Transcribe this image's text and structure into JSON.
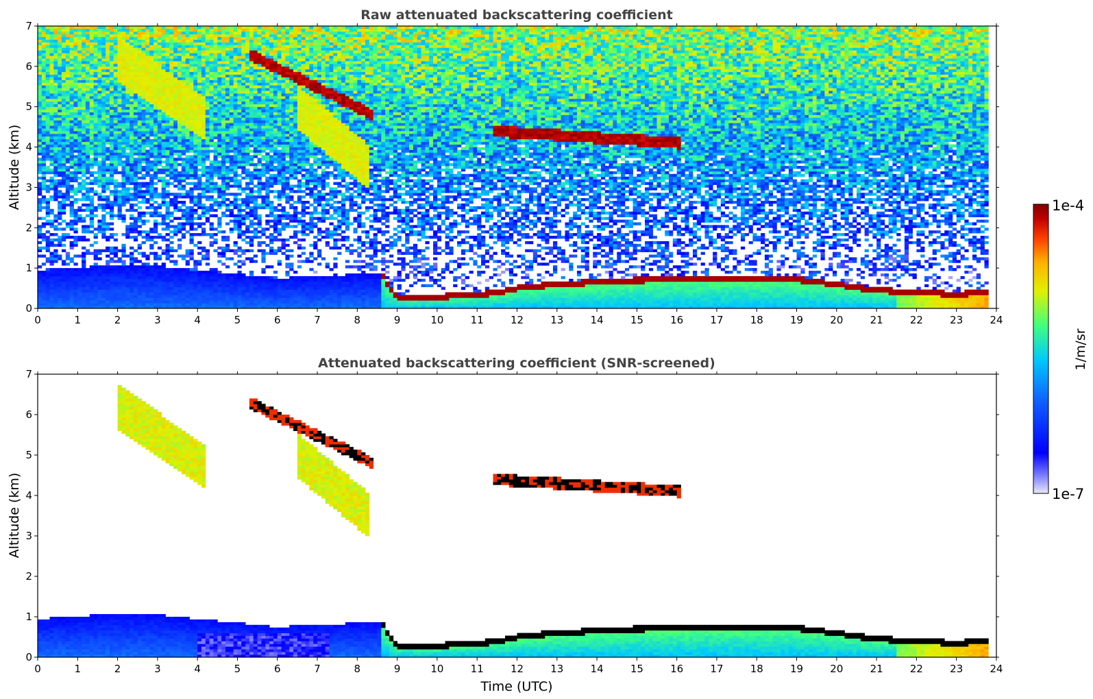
{
  "chart_data": [
    {
      "type": "heatmap",
      "title": "Raw attenuated backscattering coefficient",
      "xlabel": "",
      "ylabel": "Altitude (km)",
      "xlim": [
        0,
        24
      ],
      "ylim": [
        0,
        7
      ],
      "x_ticks": [
        "0",
        "1",
        "2",
        "3",
        "4",
        "5",
        "6",
        "7",
        "8",
        "9",
        "10",
        "11",
        "12",
        "13",
        "14",
        "15",
        "16",
        "17",
        "18",
        "19",
        "20",
        "21",
        "22",
        "23",
        "24"
      ],
      "y_ticks": [
        "0",
        "1",
        "2",
        "3",
        "4",
        "5",
        "6",
        "7"
      ],
      "screened": false,
      "features": {
        "cloud_base_km": [
          [
            8.6,
            0.85
          ],
          [
            9.0,
            0.25
          ],
          [
            10,
            0.28
          ],
          [
            11,
            0.35
          ],
          [
            11.5,
            0.38
          ],
          [
            12,
            0.5
          ],
          [
            13,
            0.6
          ],
          [
            14,
            0.65
          ],
          [
            15,
            0.7
          ],
          [
            16,
            0.72
          ],
          [
            17,
            0.75
          ],
          [
            18,
            0.75
          ],
          [
            19,
            0.72
          ],
          [
            20,
            0.6
          ],
          [
            21,
            0.45
          ],
          [
            22,
            0.4
          ],
          [
            23,
            0.35
          ],
          [
            23.8,
            0.4
          ]
        ],
        "aerosol_layer_top_km": [
          [
            0,
            0.95
          ],
          [
            1,
            1.0
          ],
          [
            2,
            1.1
          ],
          [
            3,
            1.05
          ],
          [
            4,
            0.95
          ],
          [
            5,
            0.85
          ],
          [
            6,
            0.75
          ],
          [
            7,
            0.8
          ],
          [
            8,
            0.85
          ],
          [
            8.6,
            0.85
          ]
        ],
        "elevated_layers": [
          {
            "x": [
              5.3,
              8.4
            ],
            "y": [
              6.3,
              4.8
            ],
            "level": "high"
          },
          {
            "x": [
              11.4,
              16.1
            ],
            "y": [
              4.4,
              4.1
            ],
            "level": "high"
          },
          {
            "x": [
              2.0,
              4.2
            ],
            "y": [
              6.2,
              4.7
            ],
            "level": "mid"
          },
          {
            "x": [
              6.5,
              8.3
            ],
            "y": [
              5.0,
              3.5
            ],
            "level": "mid"
          }
        ]
      }
    },
    {
      "type": "heatmap",
      "title": "Attenuated backscattering coefficient (SNR-screened)",
      "xlabel": "Time (UTC)",
      "ylabel": "Altitude (km)",
      "xlim": [
        0,
        24
      ],
      "ylim": [
        0,
        7
      ],
      "x_ticks": [
        "0",
        "1",
        "2",
        "3",
        "4",
        "5",
        "6",
        "7",
        "8",
        "9",
        "10",
        "11",
        "12",
        "13",
        "14",
        "15",
        "16",
        "17",
        "18",
        "19",
        "20",
        "21",
        "22",
        "23",
        "24"
      ],
      "y_ticks": [
        "0",
        "1",
        "2",
        "3",
        "4",
        "5",
        "6",
        "7"
      ],
      "screened": true
    }
  ],
  "colorbar": {
    "max_label": "1e-4",
    "min_label": "1e-7",
    "unit_label": "1/m/sr",
    "scale": "log",
    "colors": [
      "#e8e8f8",
      "#0000ff",
      "#00c8ff",
      "#40ff80",
      "#ffe000",
      "#ff6000",
      "#b00000",
      "#800000"
    ]
  }
}
